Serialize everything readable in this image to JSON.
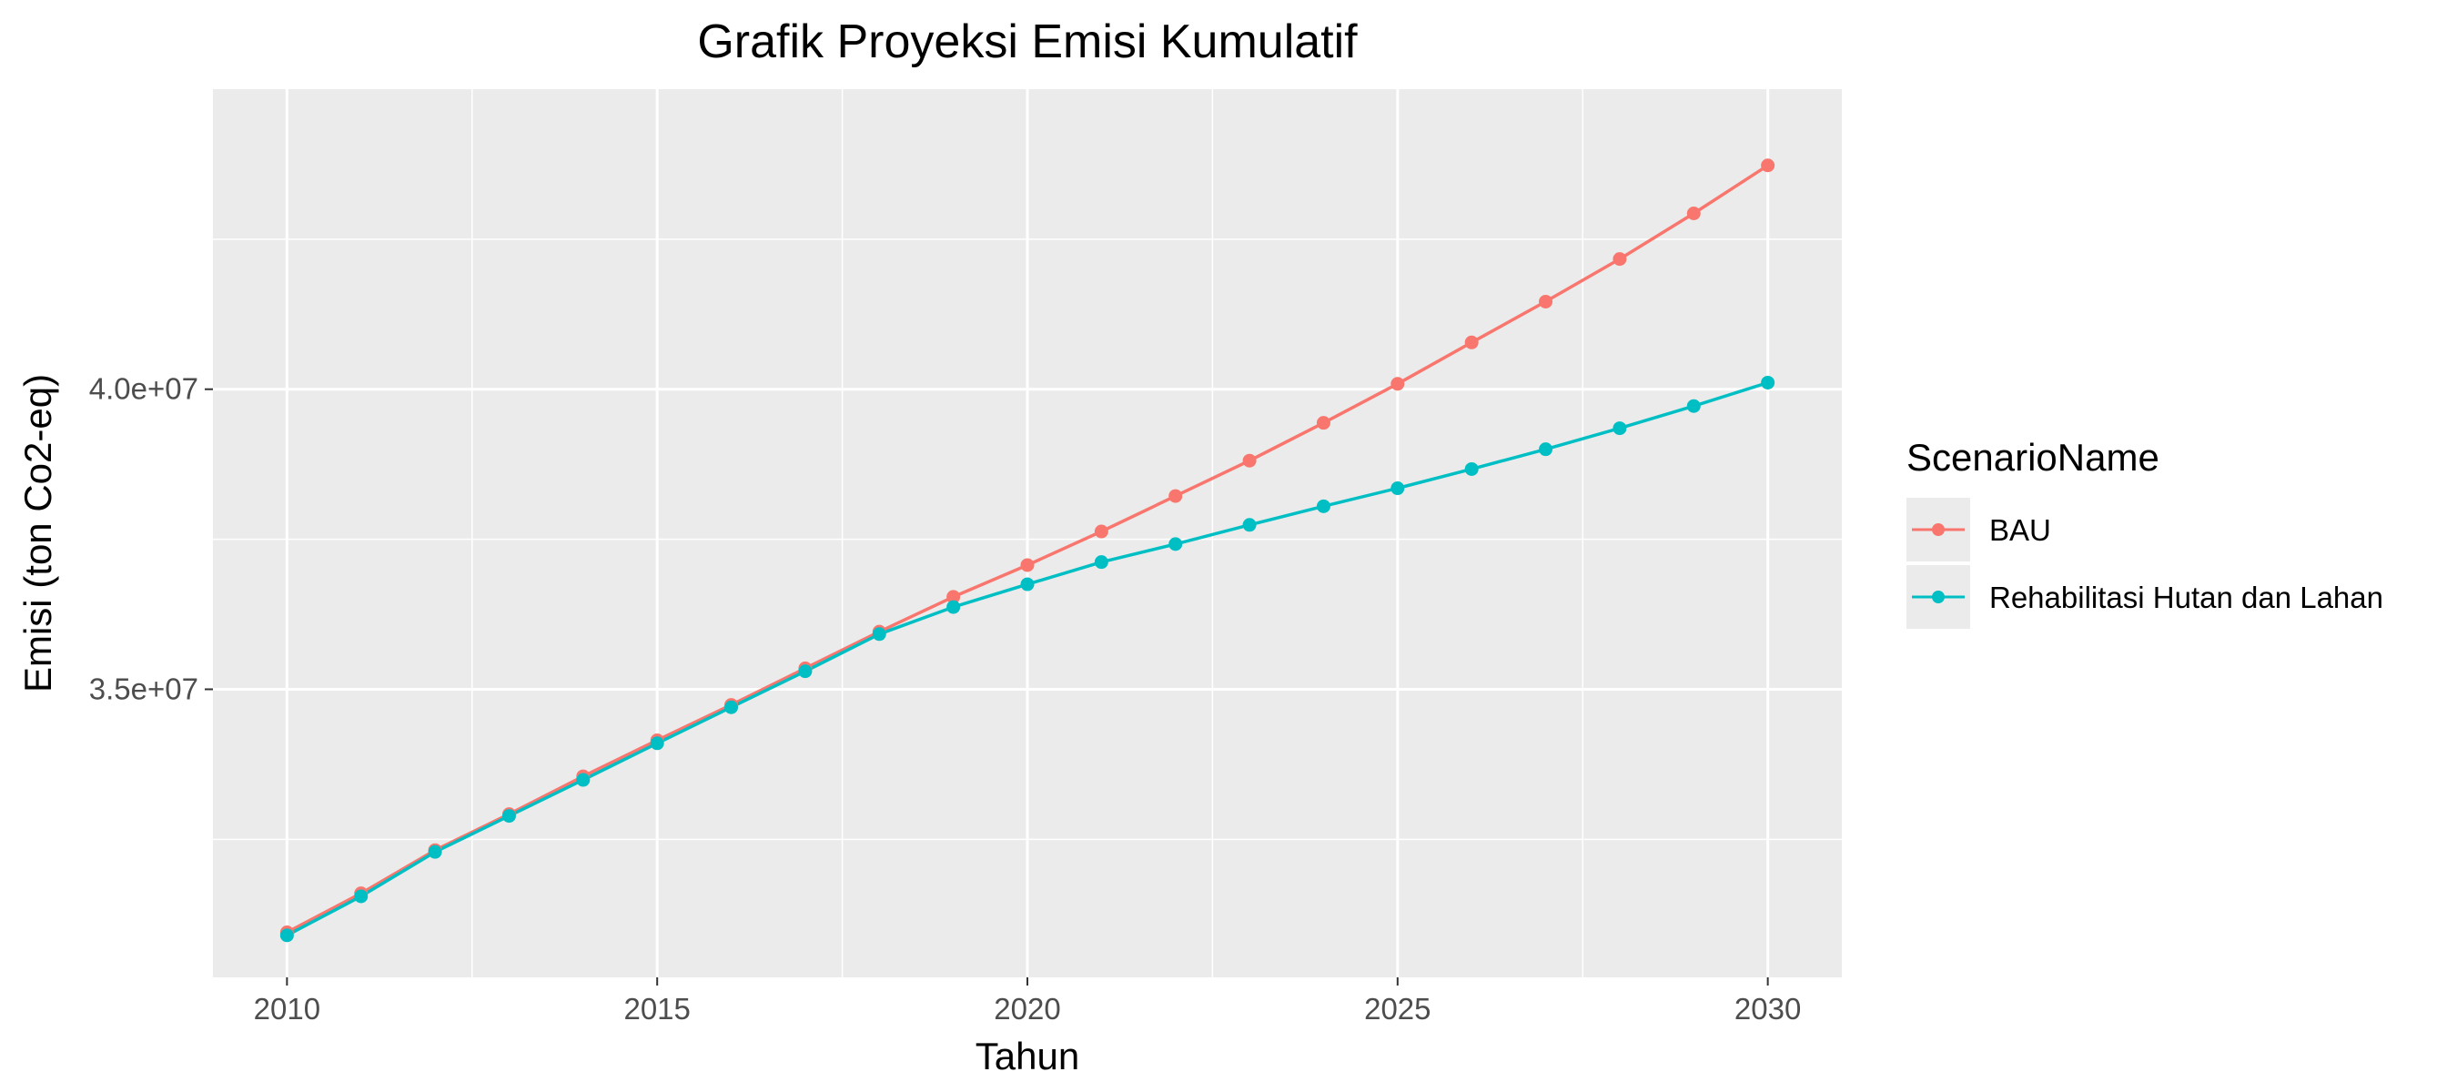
{
  "chart_data": {
    "type": "line",
    "title": "Grafik Proyeksi Emisi Kumulatif",
    "xlabel": "Tahun",
    "ylabel": "Emisi (ton Co2-eq)",
    "xlim": [
      2009,
      2031
    ],
    "ylim": [
      30200000,
      45000000
    ],
    "x_ticks": [
      2010,
      2015,
      2020,
      2025,
      2030
    ],
    "x_tick_labels": [
      "2010",
      "2015",
      "2020",
      "2025",
      "2030"
    ],
    "y_ticks": [
      35000000,
      40000000
    ],
    "y_tick_labels": [
      "3.5e+07",
      "4.0e+07"
    ],
    "grid": true,
    "panel_background": "#ebebeb",
    "grid_color": "#ffffff",
    "legend": {
      "title": "ScenarioName",
      "placement": "right"
    },
    "x": [
      2010,
      2011,
      2012,
      2013,
      2014,
      2015,
      2016,
      2017,
      2018,
      2019,
      2020,
      2021,
      2022,
      2023,
      2024,
      2025,
      2026,
      2027,
      2028,
      2029,
      2030
    ],
    "series": [
      {
        "name": "BAU",
        "color": "#F8766D",
        "values": [
          30950000,
          31600000,
          32320000,
          32920000,
          33550000,
          34150000,
          34740000,
          35350000,
          35960000,
          36540000,
          37070000,
          37630000,
          38220000,
          38810000,
          39440000,
          40090000,
          40780000,
          41460000,
          42170000,
          42930000,
          43730000
        ]
      },
      {
        "name": "Rehabilitasi Hutan dan Lahan",
        "color": "#00BFC4",
        "values": [
          30900000,
          31550000,
          32290000,
          32890000,
          33490000,
          34100000,
          34700000,
          35300000,
          35920000,
          36370000,
          36750000,
          37120000,
          37420000,
          37740000,
          38050000,
          38350000,
          38670000,
          39000000,
          39350000,
          39720000,
          40110000
        ]
      }
    ]
  }
}
